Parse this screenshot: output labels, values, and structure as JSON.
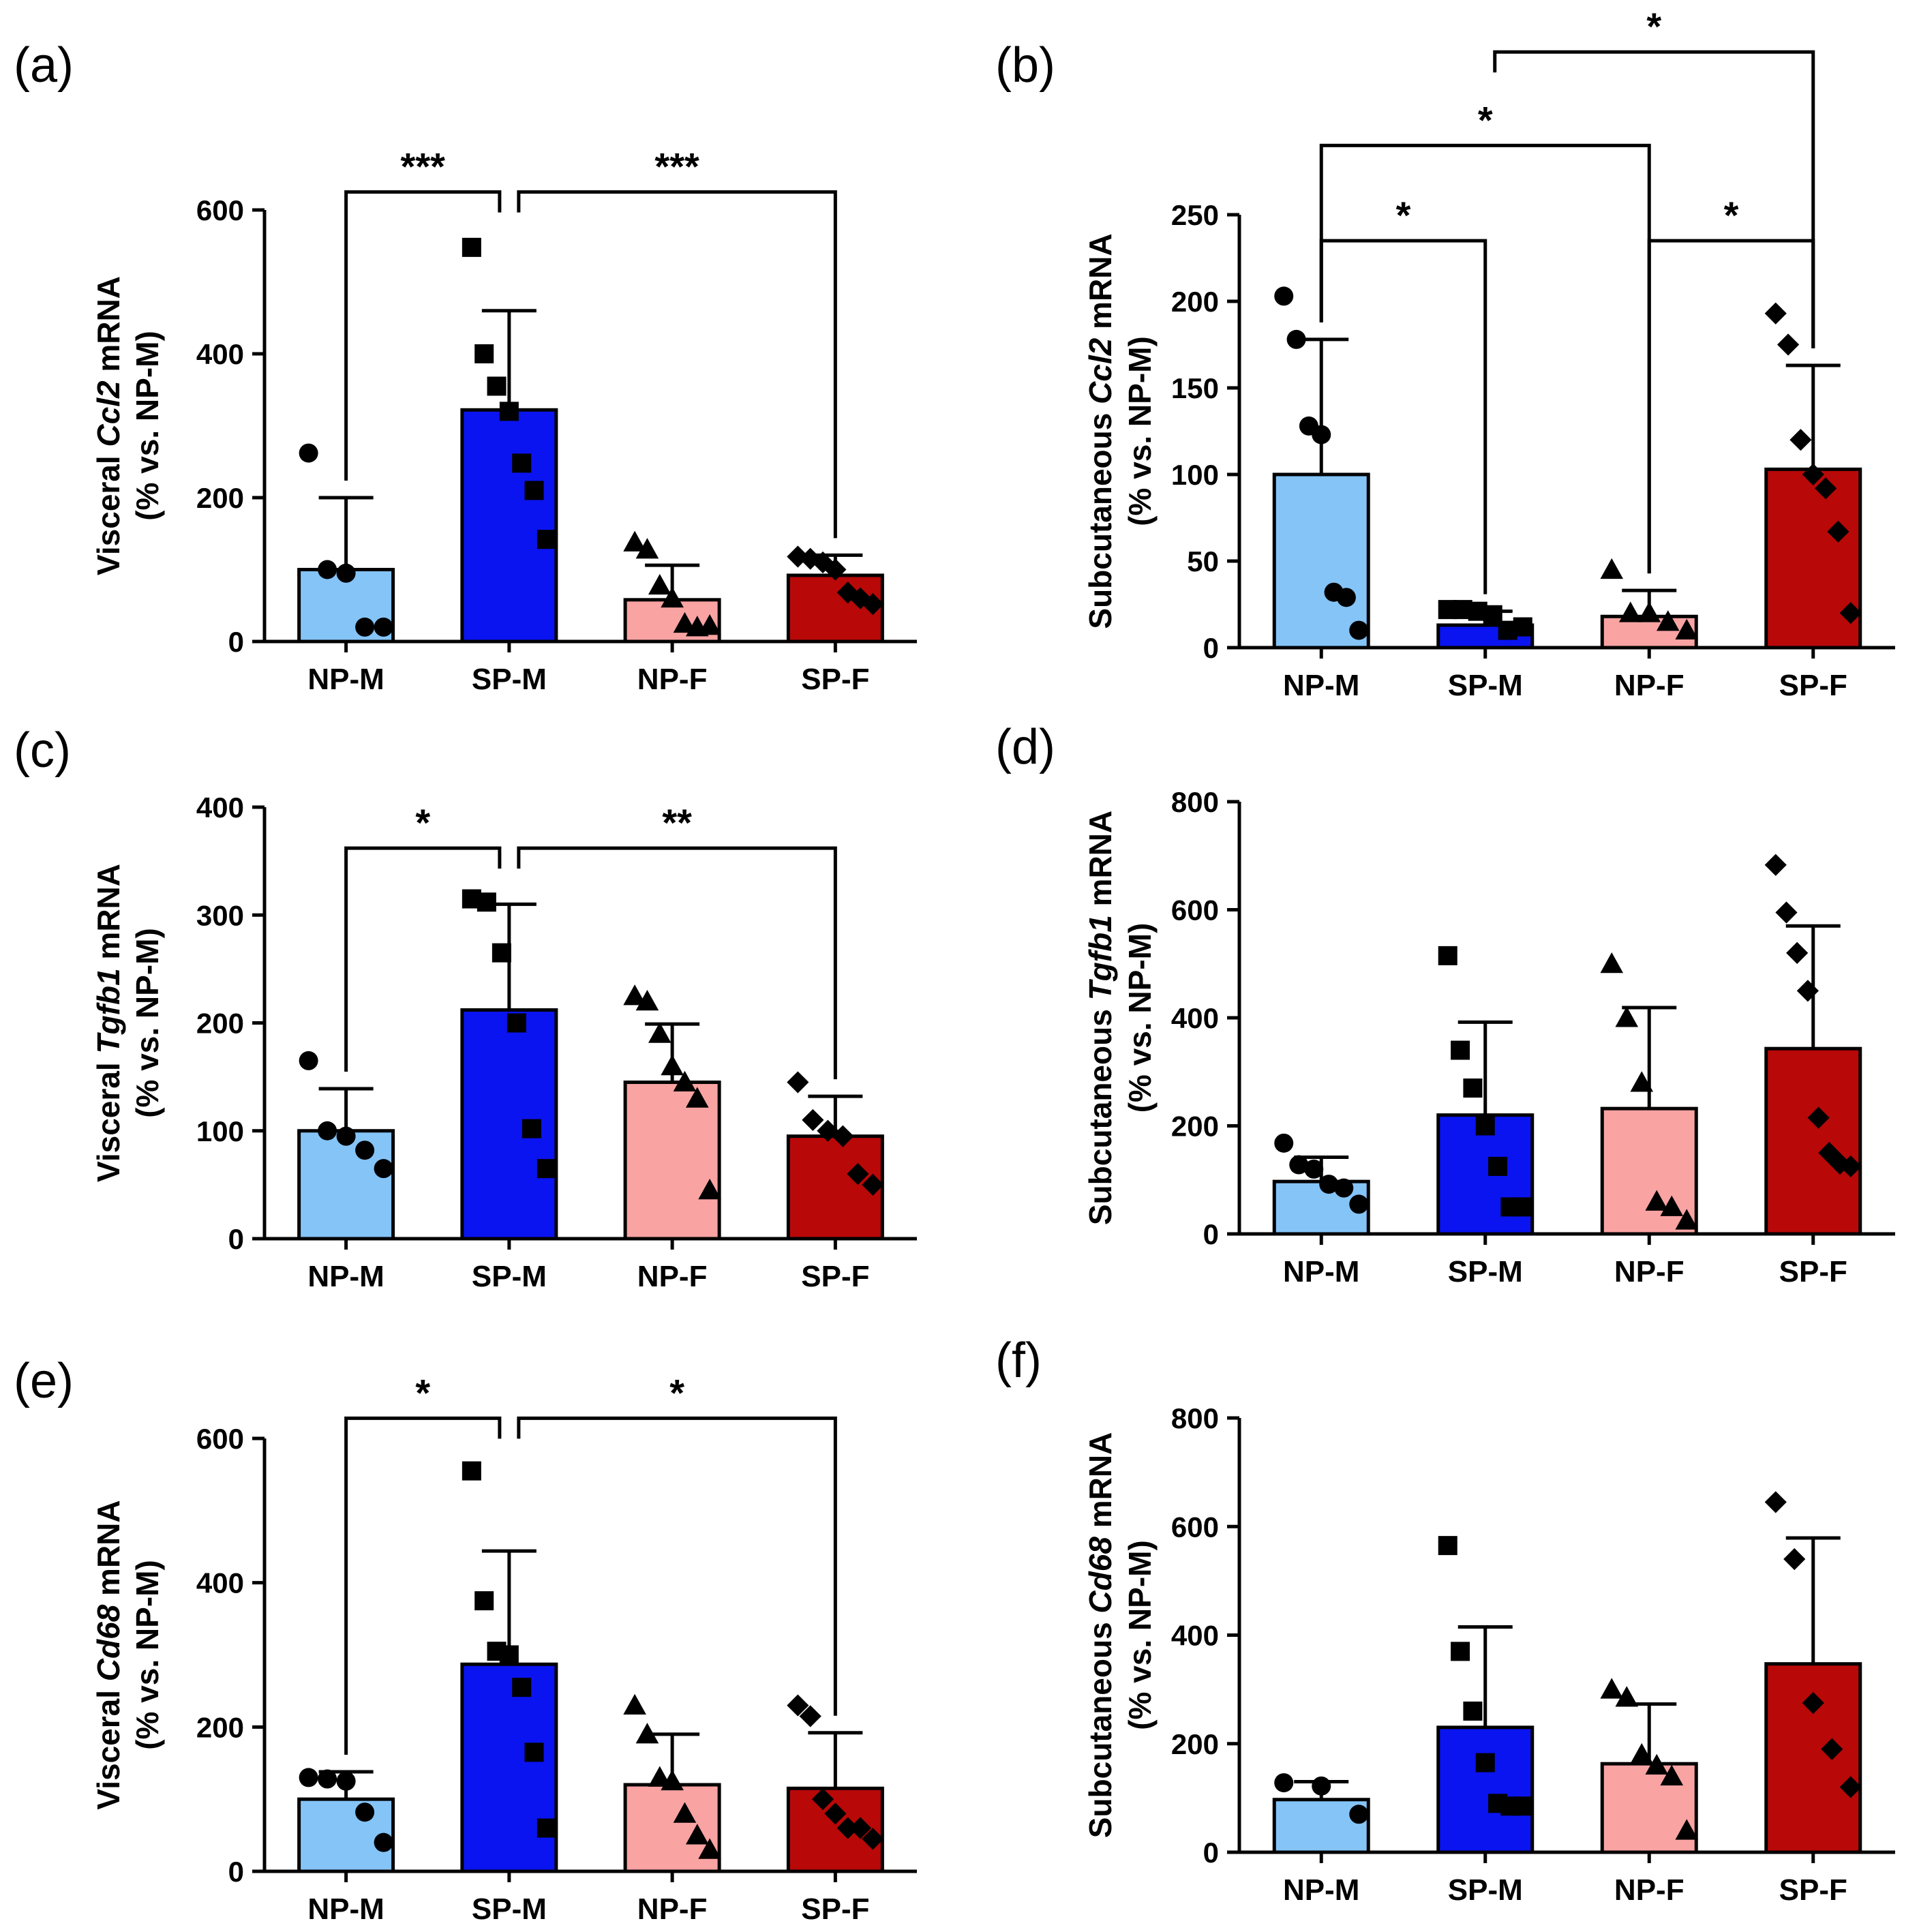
{
  "colors": {
    "NP-M": "#85C4F7",
    "SP-M": "#0A14F0",
    "NP-F": "#F9A3A3",
    "SP-F": "#B80808",
    "axis": "#000000"
  },
  "chart_data": [
    {
      "panel": "(a)",
      "type": "bar",
      "ylabel_pre": "Visceral ",
      "ylabel_gene": "Ccl2",
      "ylabel_post": " mRNA",
      "ylabel_line2": "(% vs. NP-M)",
      "categories": [
        "NP-M",
        "SP-M",
        "NP-F",
        "SP-F"
      ],
      "ylim": [
        0,
        600
      ],
      "yticks": [
        "0",
        "200",
        "400",
        "600"
      ],
      "means": [
        100,
        322,
        58,
        92
      ],
      "errors": [
        100,
        138,
        48,
        28
      ],
      "points": [
        [
          262,
          100,
          95,
          20,
          20
        ],
        [
          548,
          400,
          355,
          320,
          248,
          210,
          142
        ],
        [
          138,
          128,
          78,
          60,
          25,
          20,
          22
        ],
        [
          118,
          115,
          110,
          100,
          68,
          60,
          52
        ]
      ],
      "markers": [
        "circle",
        "square",
        "triangle",
        "diamond"
      ],
      "brackets": [
        {
          "from": 0,
          "to": 1,
          "y": 625,
          "label": "***"
        },
        {
          "from": 1,
          "to": 3,
          "y": 625,
          "label": "***"
        }
      ]
    },
    {
      "panel": "(b)",
      "type": "bar",
      "ylabel_pre": "Subcutaneous ",
      "ylabel_gene": "Ccl2",
      "ylabel_post": " mRNA",
      "ylabel_line2": "(% vs. NP-M)",
      "categories": [
        "NP-M",
        "SP-M",
        "NP-F",
        "SP-F"
      ],
      "ylim": [
        0,
        250
      ],
      "yticks": [
        "0",
        "50",
        "100",
        "150",
        "200",
        "250"
      ],
      "means": [
        100,
        13,
        18,
        103
      ],
      "errors": [
        78,
        8,
        15,
        60
      ],
      "points": [
        [
          203,
          178,
          128,
          123,
          32,
          29,
          10
        ],
        [
          22,
          22,
          21,
          19,
          10,
          12
        ],
        [
          45,
          20,
          20,
          15,
          10
        ],
        [
          193,
          175,
          120,
          100,
          92,
          67,
          20
        ]
      ],
      "markers": [
        "circle",
        "square",
        "triangle",
        "diamond"
      ],
      "brackets": [
        {
          "from": 0,
          "to": 1,
          "y": 235,
          "label": "*"
        },
        {
          "from": 2,
          "to": 3,
          "y": 235,
          "label": "*"
        },
        {
          "from": 0,
          "to": 2,
          "y": 290,
          "label": "*"
        },
        {
          "from": 1,
          "to": 3,
          "y": 344,
          "label": "*"
        }
      ]
    },
    {
      "panel": "(c)",
      "type": "bar",
      "ylabel_pre": "Visceral ",
      "ylabel_gene": "Tgfb1",
      "ylabel_post": " mRNA",
      "ylabel_line2": "(% vs. NP-M)",
      "categories": [
        "NP-M",
        "SP-M",
        "NP-F",
        "SP-F"
      ],
      "ylim": [
        0,
        400
      ],
      "yticks": [
        "0",
        "100",
        "200",
        "300",
        "400"
      ],
      "means": [
        100,
        212,
        145,
        95
      ],
      "errors": [
        39,
        98,
        54,
        37
      ],
      "points": [
        [
          165,
          100,
          95,
          82,
          65
        ],
        [
          315,
          312,
          265,
          200,
          102,
          65
        ],
        [
          225,
          220,
          190,
          160,
          145,
          130,
          45
        ],
        [
          145,
          110,
          100,
          95,
          60,
          50
        ]
      ],
      "markers": [
        "circle",
        "square",
        "triangle",
        "diamond"
      ],
      "brackets": [
        {
          "from": 0,
          "to": 1,
          "y": 362,
          "label": "*"
        },
        {
          "from": 1,
          "to": 3,
          "y": 362,
          "label": "**"
        }
      ]
    },
    {
      "panel": "(d)",
      "type": "bar",
      "ylabel_pre": "Subcutaneous ",
      "ylabel_gene": "Tgfb1",
      "ylabel_post": " mRNA",
      "ylabel_line2": "(% vs. NP-M)",
      "categories": [
        "NP-M",
        "SP-M",
        "NP-F",
        "SP-F"
      ],
      "ylim": [
        0,
        800
      ],
      "yticks": [
        "0",
        "200",
        "400",
        "600",
        "800"
      ],
      "means": [
        97,
        220,
        232,
        343
      ],
      "errors": [
        45,
        172,
        187,
        227
      ],
      "points": [
        [
          168,
          128,
          120,
          92,
          85,
          55
        ],
        [
          515,
          340,
          270,
          200,
          125,
          50,
          50
        ],
        [
          500,
          400,
          280,
          60,
          50,
          25
        ],
        [
          683,
          595,
          520,
          450,
          215,
          150,
          130,
          125
        ]
      ],
      "markers": [
        "circle",
        "square",
        "triangle",
        "diamond"
      ],
      "brackets": []
    },
    {
      "panel": "(e)",
      "type": "bar",
      "ylabel_pre": "Visceral ",
      "ylabel_gene": "Cd68",
      "ylabel_post": " mRNA",
      "ylabel_line2": "(% vs. NP-M)",
      "categories": [
        "NP-M",
        "SP-M",
        "NP-F",
        "SP-F"
      ],
      "ylim": [
        0,
        600
      ],
      "yticks": [
        "0",
        "200",
        "400",
        "600"
      ],
      "means": [
        100,
        287,
        120,
        115
      ],
      "errors": [
        38,
        157,
        70,
        77
      ],
      "points": [
        [
          130,
          128,
          125,
          82,
          40
        ],
        [
          555,
          375,
          305,
          300,
          255,
          165,
          60
        ],
        [
          230,
          190,
          130,
          125,
          80,
          50,
          30
        ],
        [
          230,
          215,
          100,
          80,
          60,
          60,
          45
        ]
      ],
      "markers": [
        "circle",
        "square",
        "triangle",
        "diamond"
      ],
      "brackets": [
        {
          "from": 0,
          "to": 1,
          "y": 628,
          "label": "*"
        },
        {
          "from": 1,
          "to": 3,
          "y": 628,
          "label": "*"
        }
      ]
    },
    {
      "panel": "(f)",
      "type": "bar",
      "ylabel_pre": "Subcutaneous ",
      "ylabel_gene": "Cd68",
      "ylabel_post": " mRNA",
      "ylabel_line2": "(% vs. NP-M)",
      "categories": [
        "NP-M",
        "SP-M",
        "NP-F",
        "SP-F"
      ],
      "ylim": [
        0,
        800
      ],
      "yticks": [
        "0",
        "200",
        "400",
        "600",
        "800"
      ],
      "means": [
        97,
        230,
        163,
        347
      ],
      "errors": [
        33,
        185,
        110,
        232
      ],
      "points": [
        [
          128,
          122,
          70
        ],
        [
          565,
          370,
          260,
          165,
          90,
          85,
          85
        ],
        [
          300,
          285,
          180,
          160,
          140,
          40
        ],
        [
          645,
          540,
          275,
          190,
          120
        ]
      ],
      "markers": [
        "circle",
        "square",
        "triangle",
        "diamond"
      ],
      "brackets": []
    }
  ]
}
